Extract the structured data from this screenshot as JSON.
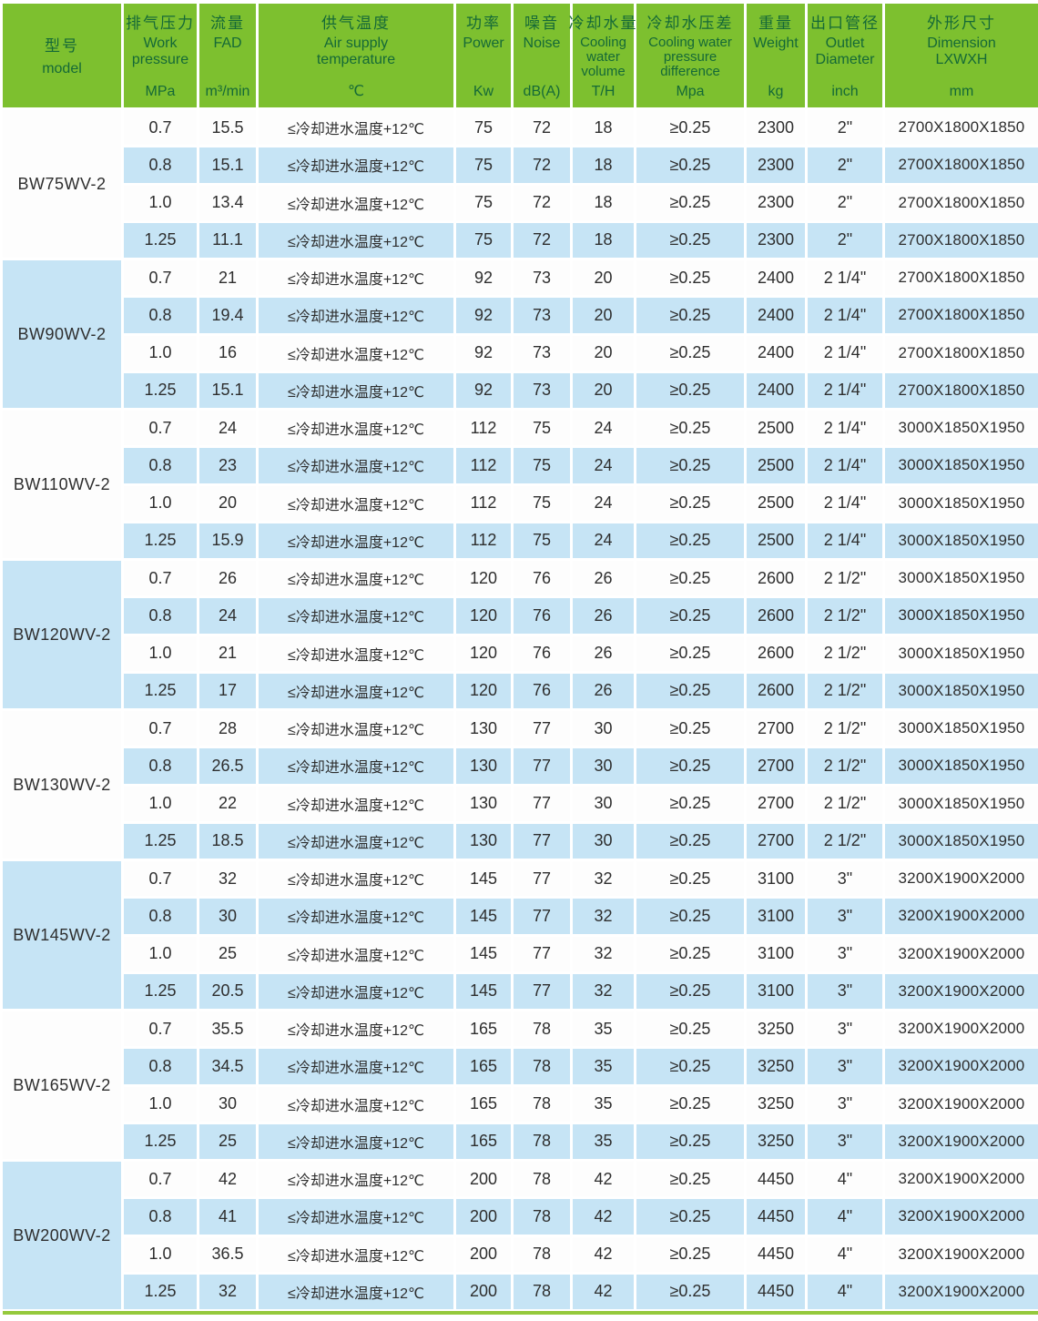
{
  "colors": {
    "header_bg": "#7dc02f",
    "header_text": "#156937",
    "row_blue": "#c6e4f5",
    "row_white": "#fdfdfd",
    "body_text": "#2e2e2e",
    "bottom_rule": "#95c93c"
  },
  "table": {
    "header": {
      "columns": [
        {
          "key": "model",
          "zh": "型号",
          "en_lines": [
            "model"
          ],
          "unit": ""
        },
        {
          "key": "pressure",
          "zh": "排气压力",
          "en_lines": [
            "Work",
            "pressure"
          ],
          "unit": "MPa"
        },
        {
          "key": "fad",
          "zh": "流量",
          "en_lines": [
            "FAD"
          ],
          "unit": "m³/min"
        },
        {
          "key": "temp",
          "zh": "供气温度",
          "en_lines": [
            "Air supply",
            "temperature"
          ],
          "unit": "℃"
        },
        {
          "key": "power",
          "zh": "功率",
          "en_lines": [
            "Power"
          ],
          "unit": "Kw"
        },
        {
          "key": "noise",
          "zh": "噪音",
          "en_lines": [
            "Noise"
          ],
          "unit": "dB(A)"
        },
        {
          "key": "cooling-volume",
          "zh": "冷却水量",
          "en_lines": [
            "Cooling",
            "water",
            "volume"
          ],
          "unit": "T/H"
        },
        {
          "key": "pressure-diff",
          "zh": "冷却水压差",
          "en_lines": [
            "Cooling water",
            "pressure",
            "difference"
          ],
          "unit": "Mpa"
        },
        {
          "key": "weight",
          "zh": "重量",
          "en_lines": [
            "Weight"
          ],
          "unit": "kg"
        },
        {
          "key": "outlet",
          "zh": "出口管径",
          "en_lines": [
            "Outlet",
            "Diameter"
          ],
          "unit": "inch"
        },
        {
          "key": "dimension",
          "zh": "外形尺寸",
          "en_lines": [
            "Dimension",
            "LXWXH"
          ],
          "unit": "mm"
        }
      ]
    },
    "groups": [
      {
        "model": "BW75WV-2",
        "rows": [
          [
            "0.7",
            "15.5",
            "≤冷却进水温度+12℃",
            "75",
            "72",
            "18",
            "≥0.25",
            "2300",
            "2\"",
            "2700X1800X1850"
          ],
          [
            "0.8",
            "15.1",
            "≤冷却进水温度+12℃",
            "75",
            "72",
            "18",
            "≥0.25",
            "2300",
            "2\"",
            "2700X1800X1850"
          ],
          [
            "1.0",
            "13.4",
            "≤冷却进水温度+12℃",
            "75",
            "72",
            "18",
            "≥0.25",
            "2300",
            "2\"",
            "2700X1800X1850"
          ],
          [
            "1.25",
            "11.1",
            "≤冷却进水温度+12℃",
            "75",
            "72",
            "18",
            "≥0.25",
            "2300",
            "2\"",
            "2700X1800X1850"
          ]
        ]
      },
      {
        "model": "BW90WV-2",
        "rows": [
          [
            "0.7",
            "21",
            "≤冷却进水温度+12℃",
            "92",
            "73",
            "20",
            "≥0.25",
            "2400",
            "2 1/4\"",
            "2700X1800X1850"
          ],
          [
            "0.8",
            "19.4",
            "≤冷却进水温度+12℃",
            "92",
            "73",
            "20",
            "≥0.25",
            "2400",
            "2 1/4\"",
            "2700X1800X1850"
          ],
          [
            "1.0",
            "16",
            "≤冷却进水温度+12℃",
            "92",
            "73",
            "20",
            "≥0.25",
            "2400",
            "2 1/4\"",
            "2700X1800X1850"
          ],
          [
            "1.25",
            "15.1",
            "≤冷却进水温度+12℃",
            "92",
            "73",
            "20",
            "≥0.25",
            "2400",
            "2 1/4\"",
            "2700X1800X1850"
          ]
        ]
      },
      {
        "model": "BW110WV-2",
        "rows": [
          [
            "0.7",
            "24",
            "≤冷却进水温度+12℃",
            "112",
            "75",
            "24",
            "≥0.25",
            "2500",
            "2 1/4\"",
            "3000X1850X1950"
          ],
          [
            "0.8",
            "23",
            "≤冷却进水温度+12℃",
            "112",
            "75",
            "24",
            "≥0.25",
            "2500",
            "2 1/4\"",
            "3000X1850X1950"
          ],
          [
            "1.0",
            "20",
            "≤冷却进水温度+12℃",
            "112",
            "75",
            "24",
            "≥0.25",
            "2500",
            "2 1/4\"",
            "3000X1850X1950"
          ],
          [
            "1.25",
            "15.9",
            "≤冷却进水温度+12℃",
            "112",
            "75",
            "24",
            "≥0.25",
            "2500",
            "2 1/4\"",
            "3000X1850X1950"
          ]
        ]
      },
      {
        "model": "BW120WV-2",
        "rows": [
          [
            "0.7",
            "26",
            "≤冷却进水温度+12℃",
            "120",
            "76",
            "26",
            "≥0.25",
            "2600",
            "2 1/2\"",
            "3000X1850X1950"
          ],
          [
            "0.8",
            "24",
            "≤冷却进水温度+12℃",
            "120",
            "76",
            "26",
            "≥0.25",
            "2600",
            "2 1/2\"",
            "3000X1850X1950"
          ],
          [
            "1.0",
            "21",
            "≤冷却进水温度+12℃",
            "120",
            "76",
            "26",
            "≥0.25",
            "2600",
            "2 1/2\"",
            "3000X1850X1950"
          ],
          [
            "1.25",
            "17",
            "≤冷却进水温度+12℃",
            "120",
            "76",
            "26",
            "≥0.25",
            "2600",
            "2 1/2\"",
            "3000X1850X1950"
          ]
        ]
      },
      {
        "model": "BW130WV-2",
        "rows": [
          [
            "0.7",
            "28",
            "≤冷却进水温度+12℃",
            "130",
            "77",
            "30",
            "≥0.25",
            "2700",
            "2 1/2\"",
            "3000X1850X1950"
          ],
          [
            "0.8",
            "26.5",
            "≤冷却进水温度+12℃",
            "130",
            "77",
            "30",
            "≥0.25",
            "2700",
            "2 1/2\"",
            "3000X1850X1950"
          ],
          [
            "1.0",
            "22",
            "≤冷却进水温度+12℃",
            "130",
            "77",
            "30",
            "≥0.25",
            "2700",
            "2 1/2\"",
            "3000X1850X1950"
          ],
          [
            "1.25",
            "18.5",
            "≤冷却进水温度+12℃",
            "130",
            "77",
            "30",
            "≥0.25",
            "2700",
            "2 1/2\"",
            "3000X1850X1950"
          ]
        ]
      },
      {
        "model": "BW145WV-2",
        "rows": [
          [
            "0.7",
            "32",
            "≤冷却进水温度+12℃",
            "145",
            "77",
            "32",
            "≥0.25",
            "3100",
            "3\"",
            "3200X1900X2000"
          ],
          [
            "0.8",
            "30",
            "≤冷却进水温度+12℃",
            "145",
            "77",
            "32",
            "≥0.25",
            "3100",
            "3\"",
            "3200X1900X2000"
          ],
          [
            "1.0",
            "25",
            "≤冷却进水温度+12℃",
            "145",
            "77",
            "32",
            "≥0.25",
            "3100",
            "3\"",
            "3200X1900X2000"
          ],
          [
            "1.25",
            "20.5",
            "≤冷却进水温度+12℃",
            "145",
            "77",
            "32",
            "≥0.25",
            "3100",
            "3\"",
            "3200X1900X2000"
          ]
        ]
      },
      {
        "model": "BW165WV-2",
        "rows": [
          [
            "0.7",
            "35.5",
            "≤冷却进水温度+12℃",
            "165",
            "78",
            "35",
            "≥0.25",
            "3250",
            "3\"",
            "3200X1900X2000"
          ],
          [
            "0.8",
            "34.5",
            "≤冷却进水温度+12℃",
            "165",
            "78",
            "35",
            "≥0.25",
            "3250",
            "3\"",
            "3200X1900X2000"
          ],
          [
            "1.0",
            "30",
            "≤冷却进水温度+12℃",
            "165",
            "78",
            "35",
            "≥0.25",
            "3250",
            "3\"",
            "3200X1900X2000"
          ],
          [
            "1.25",
            "25",
            "≤冷却进水温度+12℃",
            "165",
            "78",
            "35",
            "≥0.25",
            "3250",
            "3\"",
            "3200X1900X2000"
          ]
        ]
      },
      {
        "model": "BW200WV-2",
        "rows": [
          [
            "0.7",
            "42",
            "≤冷却进水温度+12℃",
            "200",
            "78",
            "42",
            "≥0.25",
            "4450",
            "4\"",
            "3200X1900X2000"
          ],
          [
            "0.8",
            "41",
            "≤冷却进水温度+12℃",
            "200",
            "78",
            "42",
            "≥0.25",
            "4450",
            "4\"",
            "3200X1900X2000"
          ],
          [
            "1.0",
            "36.5",
            "≤冷却进水温度+12℃",
            "200",
            "78",
            "42",
            "≥0.25",
            "4450",
            "4\"",
            "3200X1900X2000"
          ],
          [
            "1.25",
            "32",
            "≤冷却进水温度+12℃",
            "200",
            "78",
            "42",
            "≥0.25",
            "4450",
            "4\"",
            "3200X1900X2000"
          ]
        ]
      }
    ]
  }
}
